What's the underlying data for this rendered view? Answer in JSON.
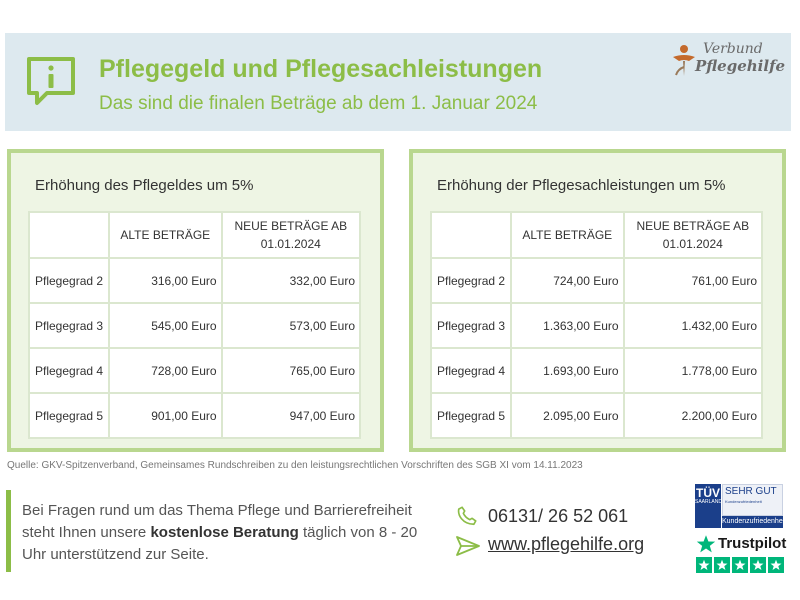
{
  "header": {
    "title": "Pflegegeld und Pflegesachleistungen",
    "subtitle": "Das sind die finalen Beträge ab dem 1. Januar 2024",
    "logo_line1": "Verbund",
    "logo_line2": "Pflegehilfe"
  },
  "colors": {
    "accent": "#8cbd47",
    "header_bg": "#dde9ef",
    "panel_border": "#b9d78f",
    "panel_bg": "#eef5e4"
  },
  "pflegegeld": {
    "title": "Erhöhung des Pflegeldes um 5%",
    "col_old": "ALTE BETRÄGE",
    "col_new_line1": "NEUE BETRÄGE AB",
    "col_new_line2": "01.01.2024",
    "rows": [
      {
        "grade": "Pflegegrad 2",
        "old": "316,00 Euro",
        "new": "332,00 Euro"
      },
      {
        "grade": "Pflegegrad 3",
        "old": "545,00 Euro",
        "new": "573,00 Euro"
      },
      {
        "grade": "Pflegegrad 4",
        "old": "728,00 Euro",
        "new": "765,00 Euro"
      },
      {
        "grade": "Pflegegrad 5",
        "old": "901,00 Euro",
        "new": "947,00 Euro"
      }
    ]
  },
  "sachleistungen": {
    "title": "Erhöhung der Pflegesachleistungen um 5%",
    "col_old": "ALTE BETRÄGE",
    "col_new_line1": "NEUE BETRÄGE AB",
    "col_new_line2": "01.01.2024",
    "rows": [
      {
        "grade": "Pflegegrad 2",
        "old": "724,00 Euro",
        "new": "761,00 Euro"
      },
      {
        "grade": "Pflegegrad 3",
        "old": "1.363,00 Euro",
        "new": "1.432,00 Euro"
      },
      {
        "grade": "Pflegegrad 4",
        "old": "1.693,00 Euro",
        "new": "1.778,00 Euro"
      },
      {
        "grade": "Pflegegrad 5",
        "old": "2.095,00 Euro",
        "new": "2.200,00 Euro"
      }
    ]
  },
  "source": "Quelle: GKV-Spitzenverband, Gemeinsames Rundschreiben zu den leistungsrechtlichen Vorschriften des SGB XI vom 14.11.2023",
  "footer": {
    "text_part1": "Bei Fragen rund um das Thema Pflege und Barrierefreiheit steht Ihnen unsere ",
    "text_bold": "kostenlose Beratung",
    "text_part2": " täglich von 8 - 20 Uhr unterstützend zur Seite.",
    "phone": "06131/ 26 52 061",
    "website": "www.pflegehilfe.org",
    "icons": [
      "phone-icon",
      "send-icon"
    ]
  },
  "badges": {
    "tuev_logo": "TÜV",
    "tuev_sub": "SAARLAND",
    "tuev_rating": "SEHR GUT",
    "tuev_small": "Kundenzufriedenheit",
    "tuev_bottom": "Kundenzufriedenheit",
    "trustpilot": "Trustpilot",
    "trustpilot_stars": 5
  }
}
